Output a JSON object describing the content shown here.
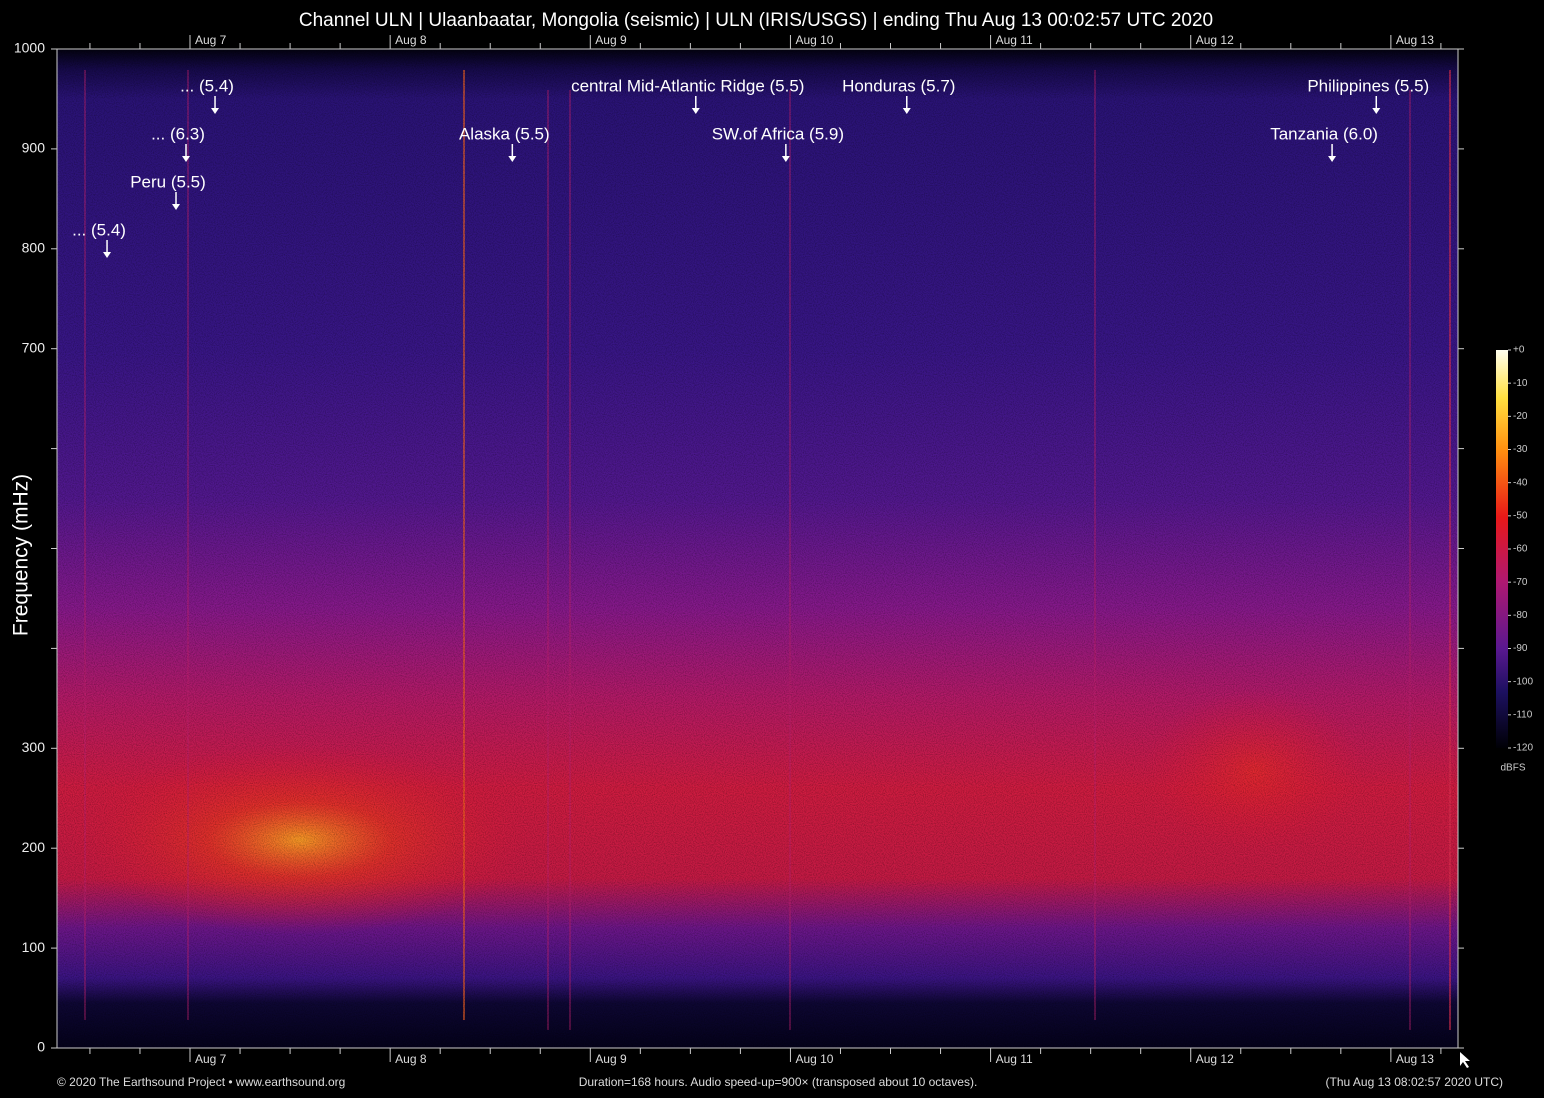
{
  "chart_data": {
    "type": "spectrogram",
    "title": "Channel ULN | Ulaanbaatar, Mongolia (seismic) | ULN (IRIS/USGS) | ending Thu Aug 13 00:02:57 UTC 2020",
    "y_label": "Frequency (mHz)",
    "ylim": [
      0,
      1000
    ],
    "yticks": [
      0,
      100,
      200,
      300,
      700,
      800,
      900,
      1000
    ],
    "y_minor_ticks": [
      400,
      500,
      600
    ],
    "xlim": [
      0,
      168
    ],
    "xticks": [
      {
        "value": 15.95,
        "label": "Aug 7"
      },
      {
        "value": 39.95,
        "label": "Aug 8"
      },
      {
        "value": 63.95,
        "label": "Aug 9"
      },
      {
        "value": 87.95,
        "label": "Aug 10"
      },
      {
        "value": 111.95,
        "label": "Aug 11"
      },
      {
        "value": 135.95,
        "label": "Aug 12"
      },
      {
        "value": 159.95,
        "label": "Aug 13"
      }
    ],
    "x_minor_ticks": [
      3.95,
      9.95,
      21.95,
      27.95,
      33.95,
      45.95,
      51.95,
      57.95,
      69.95,
      75.95,
      81.95,
      93.95,
      99.95,
      105.95,
      117.95,
      123.95,
      129.95,
      141.95,
      147.95,
      153.95,
      165.95
    ],
    "annotations": [
      {
        "text": "... (5.4)",
        "x": 18.95
      },
      {
        "text": "... (6.3)",
        "x": 15.47
      },
      {
        "text": "Peru (5.5)",
        "x": 14.27
      },
      {
        "text": "... (5.4)",
        "x": 6.0
      },
      {
        "text": "central Mid-Atlantic Ridge (5.5)",
        "x": 76.6
      },
      {
        "text": "Alaska (5.5)",
        "x": 54.6
      },
      {
        "text": "Honduras (5.7)",
        "x": 101.9
      },
      {
        "text": "SW.of Africa (5.9)",
        "x": 87.4
      },
      {
        "text": "Philippines (5.5)",
        "x": 158.2
      },
      {
        "text": "Tanzania (6.0)",
        "x": 152.9
      }
    ],
    "colorbar": {
      "label": "dBFS",
      "zlim": [
        -120,
        0
      ],
      "ticks": [
        {
          "value": 0,
          "label": "+0"
        },
        -10,
        -20,
        -30,
        -40,
        -50,
        -60,
        -70,
        -80,
        -90,
        -100,
        -110,
        -120
      ]
    },
    "footer_left": "© 2020 The Earthsound Project • www.earthsound.org",
    "footer_center": "Duration=168 hours. Audio speed-up=900× (transposed about 10 octaves).",
    "footer_right": "(Thu Aug 13 08:02:57 2020 UTC)"
  }
}
